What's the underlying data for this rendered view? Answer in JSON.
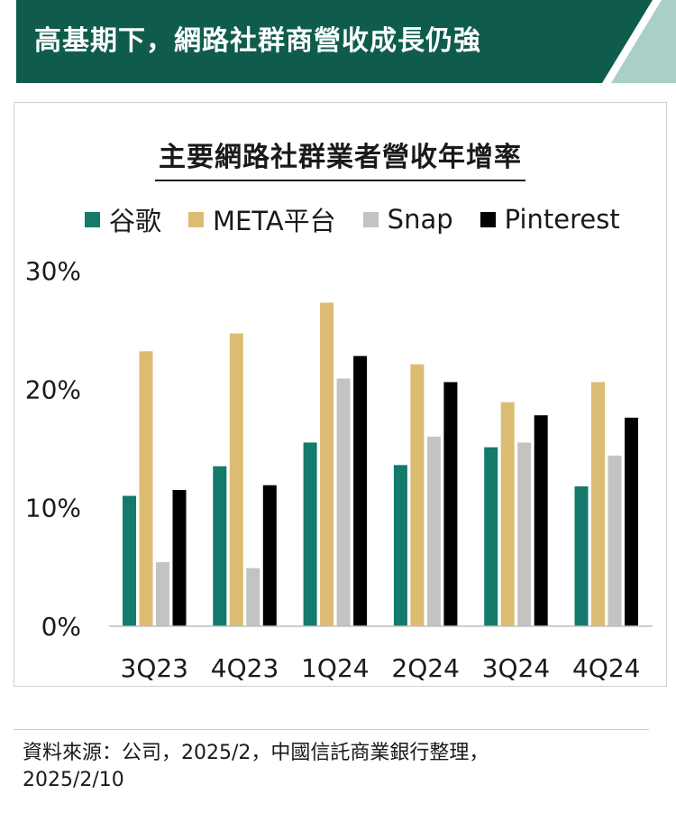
{
  "header": {
    "title": "高基期下，網路社群商營收成長仍強"
  },
  "colors": {
    "banner": "#0f5c4c",
    "accent_stripe": "#a9cfc9",
    "google": "#137a6c",
    "meta": "#dcbb72",
    "snap": "#c3c3c3",
    "pinterest": "#000000"
  },
  "chart_data": {
    "type": "bar",
    "title": "主要網路社群業者營收年增率",
    "categories": [
      "3Q23",
      "4Q23",
      "1Q24",
      "2Q24",
      "3Q24",
      "4Q24"
    ],
    "series": [
      {
        "name": "谷歌",
        "values": [
          11,
          13.5,
          15.5,
          13.6,
          15.1,
          11.8
        ]
      },
      {
        "name": "META平台",
        "values": [
          23.2,
          24.7,
          27.3,
          22.1,
          18.9,
          20.6
        ]
      },
      {
        "name": "Snap",
        "values": [
          5.4,
          4.9,
          20.9,
          16,
          15.5,
          14.4
        ]
      },
      {
        "name": "Pinterest",
        "values": [
          11.5,
          11.9,
          22.8,
          20.6,
          17.8,
          17.6
        ]
      }
    ],
    "yticks": [
      "0%",
      "10%",
      "20%",
      "30%"
    ],
    "ylim": [
      0,
      30
    ],
    "xlabel": "",
    "ylabel": "",
    "legend": "top",
    "grid": false
  },
  "footer": {
    "source_line1": "資料來源：公司，2025/2，中國信託商業銀行整理，",
    "source_line2": "2025/2/10"
  }
}
